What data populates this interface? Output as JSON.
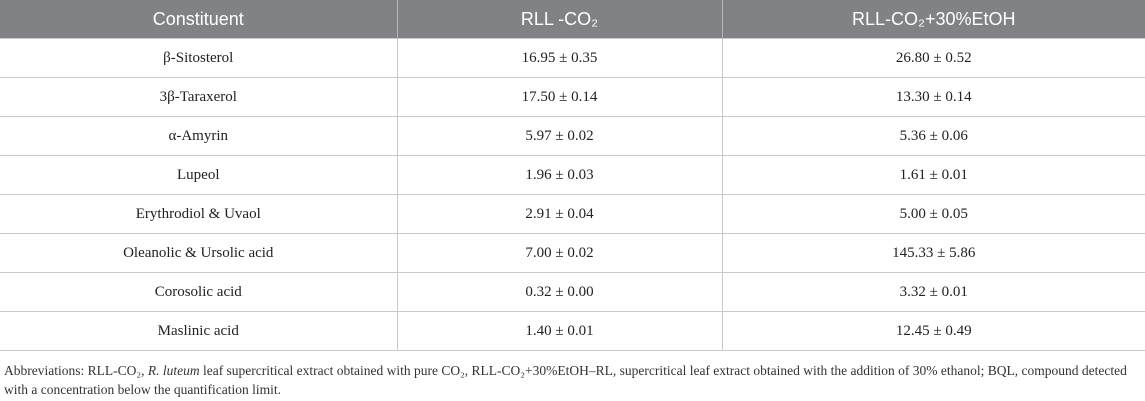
{
  "table": {
    "header": [
      "Constituent",
      "RLL -CO₂",
      "RLL-CO₂+30%EtOH"
    ],
    "rows": [
      [
        "β-Sitosterol",
        "16.95 ± 0.35",
        "26.80 ± 0.52"
      ],
      [
        "3β-Taraxerol",
        "17.50 ± 0.14",
        "13.30 ± 0.14"
      ],
      [
        "α-Amyrin",
        "5.97 ± 0.02",
        "5.36 ± 0.06"
      ],
      [
        "Lupeol",
        "1.96 ± 0.03",
        "1.61 ± 0.01"
      ],
      [
        "Erythrodiol & Uvaol",
        "2.91 ± 0.04",
        "5.00 ± 0.05"
      ],
      [
        "Oleanolic & Ursolic acid",
        "7.00 ± 0.02",
        "145.33 ± 5.86"
      ],
      [
        "Corosolic acid",
        "0.32 ± 0.00",
        "3.32 ± 0.01"
      ],
      [
        "Maslinic acid",
        "1.40 ± 0.01",
        "12.45 ± 0.49"
      ]
    ]
  },
  "footnote": [
    "Abbreviations: RLL-CO₂, ",
    "R. luteum",
    " leaf supercritical extract obtained with pure CO₂, RLL-CO₂+30%EtOH–RL, supercritical leaf extract obtained with the addition of 30% ethanol; BQL, compound detected with a concentration below the quantification limit."
  ]
}
